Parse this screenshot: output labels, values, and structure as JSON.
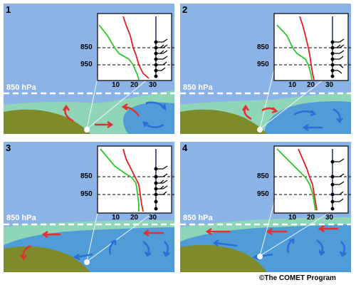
{
  "credit": "©The COMET Program",
  "level_label": "850 hPa",
  "axis": {
    "pressure_levels": [
      "850",
      "950"
    ],
    "temperature_ticks": [
      "10",
      "20",
      "30"
    ]
  },
  "panels": [
    {
      "number": "1"
    },
    {
      "number": "2"
    },
    {
      "number": "3"
    },
    {
      "number": "4"
    }
  ],
  "colors": {
    "sky": "#8cb3e6",
    "marine_layer": "#4f9cd6",
    "mixed_layer": "#8fd5b8",
    "land": "#7f8a2a",
    "temperature": "#e02020",
    "dewpoint": "#2ec82e",
    "warm_flow": "#e03030",
    "cold_flow": "#2a6fd6",
    "wind_staff": "#1a2a66"
  },
  "icons": [
    "red-flow-arrow",
    "blue-flow-arrow",
    "wind-barb",
    "observation-point"
  ]
}
